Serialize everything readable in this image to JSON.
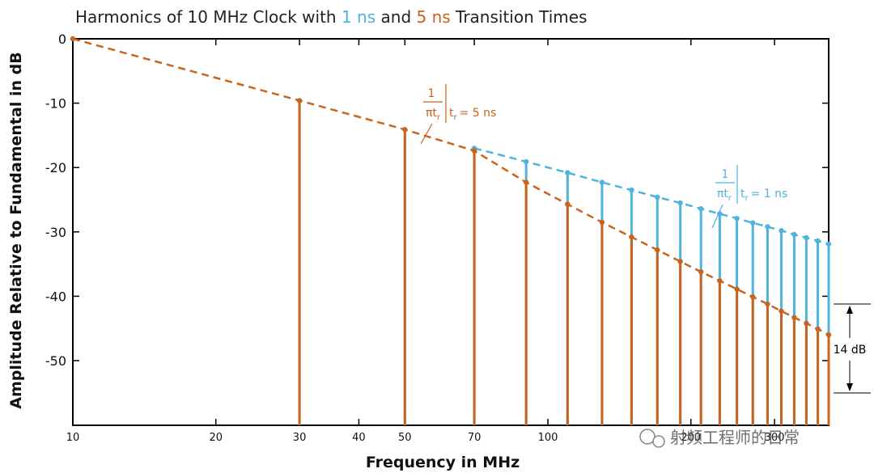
{
  "colors": {
    "ns1": "#4FB3DE",
    "ns5": "#C8641E",
    "axis": "#000000",
    "text": "#111111"
  },
  "chart_data": {
    "type": "bar",
    "title": {
      "prefix": "Harmonics of 10 MHz Clock with ",
      "s1": "1 ns",
      "mid": " and ",
      "s2": "5 ns",
      "suffix": " Transition Times"
    },
    "xlabel": "Frequency in MHz",
    "ylabel": "Amplitude Relative to Fundamental in dB",
    "x_scale": "log",
    "xlim": [
      10,
      390
    ],
    "ylim": [
      -60,
      0
    ],
    "x_ticks": [
      {
        "value": 10,
        "label": "10"
      },
      {
        "value": 20,
        "label": "20"
      },
      {
        "value": 30,
        "label": "30"
      },
      {
        "value": 40,
        "label": "40"
      },
      {
        "value": 50,
        "label": "50"
      },
      {
        "value": 70,
        "label": "70"
      },
      {
        "value": 100,
        "label": "100"
      },
      {
        "value": 200,
        "label": "200"
      },
      {
        "value": 300,
        "label": "300"
      }
    ],
    "y_ticks": [
      {
        "value": 0,
        "label": "0"
      },
      {
        "value": -10,
        "label": "-10"
      },
      {
        "value": -20,
        "label": "-20"
      },
      {
        "value": -30,
        "label": "-30"
      },
      {
        "value": -40,
        "label": "-40"
      },
      {
        "value": -50,
        "label": "-50"
      }
    ],
    "harmonics_mhz": [
      10,
      30,
      50,
      70,
      90,
      110,
      130,
      150,
      170,
      190,
      210,
      230,
      250,
      270,
      290,
      310,
      330,
      350,
      370,
      390
    ],
    "series": [
      {
        "name": "1 ns",
        "values": [
          0,
          -9.5,
          -14.0,
          -17.0,
          -19.1,
          -20.8,
          -22.3,
          -23.5,
          -24.6,
          -25.5,
          -26.4,
          -27.2,
          -27.9,
          -28.6,
          -29.2,
          -29.8,
          -30.4,
          -30.9,
          -31.4,
          -31.9
        ]
      },
      {
        "name": "5 ns",
        "values": [
          0,
          -9.6,
          -14.1,
          -17.4,
          -22.3,
          -25.7,
          -28.5,
          -30.8,
          -32.8,
          -34.6,
          -36.2,
          -37.6,
          -38.9,
          -40.1,
          -41.2,
          -42.3,
          -43.3,
          -44.2,
          -45.1,
          -46.0
        ]
      }
    ],
    "annotations": {
      "corner_5ns": {
        "num": "1",
        "den": "πt",
        "sub": "r",
        "cond_t": "t",
        "cond_sub": "r",
        "cond_val": "= 5 ns"
      },
      "corner_1ns": {
        "num": "1",
        "den": "πt",
        "sub": "r",
        "cond_t": "t",
        "cond_sub": "r",
        "cond_val": "= 1 ns"
      },
      "difference": "14 dB"
    }
  },
  "watermark": "射频工程师的日常"
}
